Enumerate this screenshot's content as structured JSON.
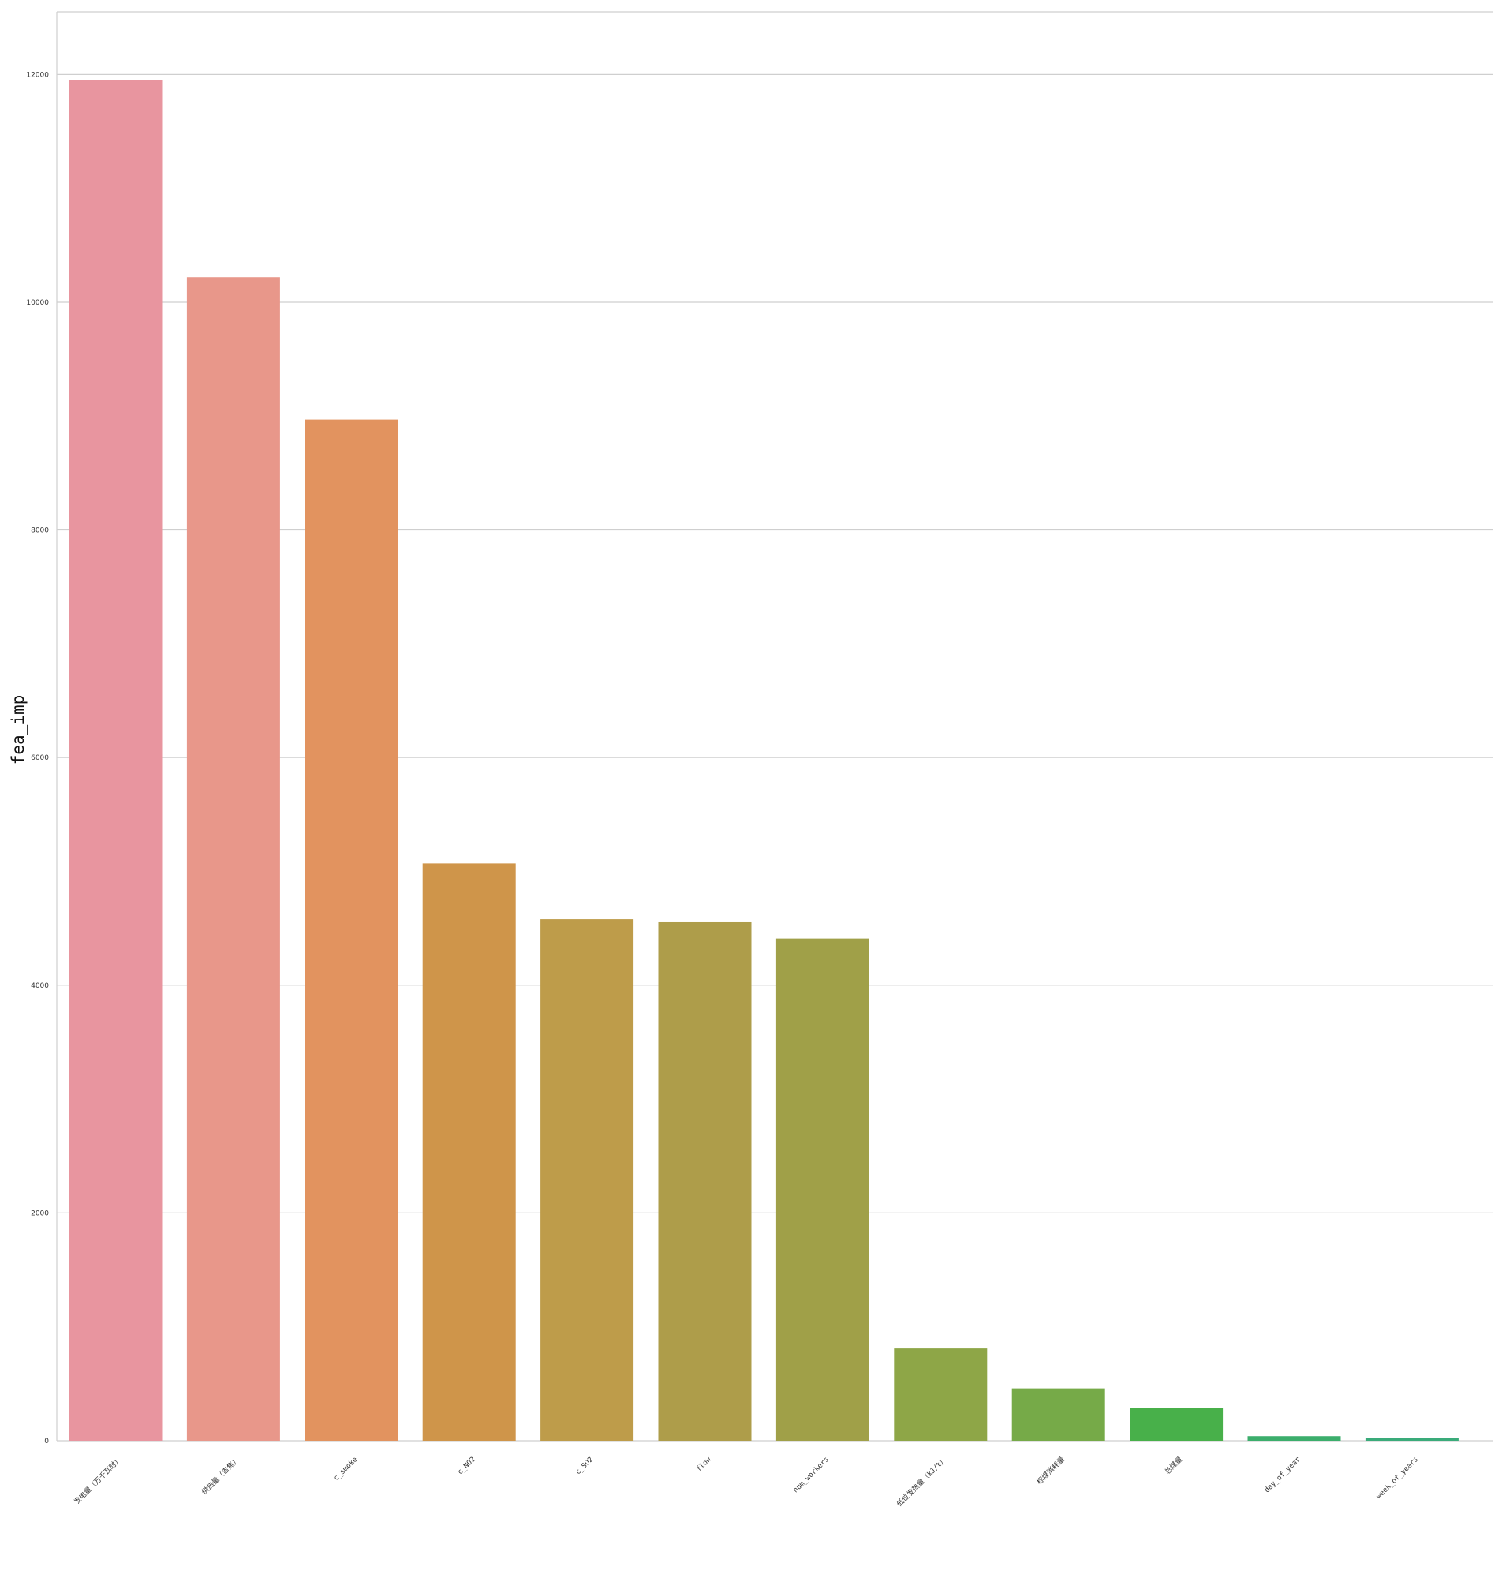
{
  "chart_data": {
    "type": "bar",
    "title": "",
    "xlabel": "",
    "ylabel": "fea_imp",
    "ylim": [
      0,
      12550
    ],
    "yticks": [
      0,
      2000,
      4000,
      6000,
      8000,
      10000,
      12000
    ],
    "ytick_labels": [
      "0",
      "2000",
      "4000",
      "6000",
      "8000",
      "10000",
      "12000"
    ],
    "grid": "horizontal",
    "categories": [
      "发电量（万千瓦时）",
      "供热量（吉焦）",
      "c_smoke",
      "c_NO2",
      "c_SO2",
      "flow",
      "num_workers",
      "低位发热量（kJ/t）",
      "标煤消耗量",
      "总煤量",
      "day_of_year",
      "week_of_years"
    ],
    "values": [
      11950,
      10220,
      8970,
      5070,
      4580,
      4560,
      4410,
      810,
      460,
      290,
      40,
      25
    ],
    "colors": [
      "#e8959f",
      "#e8978a",
      "#e2935f",
      "#cf954a",
      "#be9c4a",
      "#ae9d4a",
      "#a0a048",
      "#8ea647",
      "#76aa48",
      "#48b04a",
      "#3cae6c",
      "#3aab7a"
    ]
  }
}
